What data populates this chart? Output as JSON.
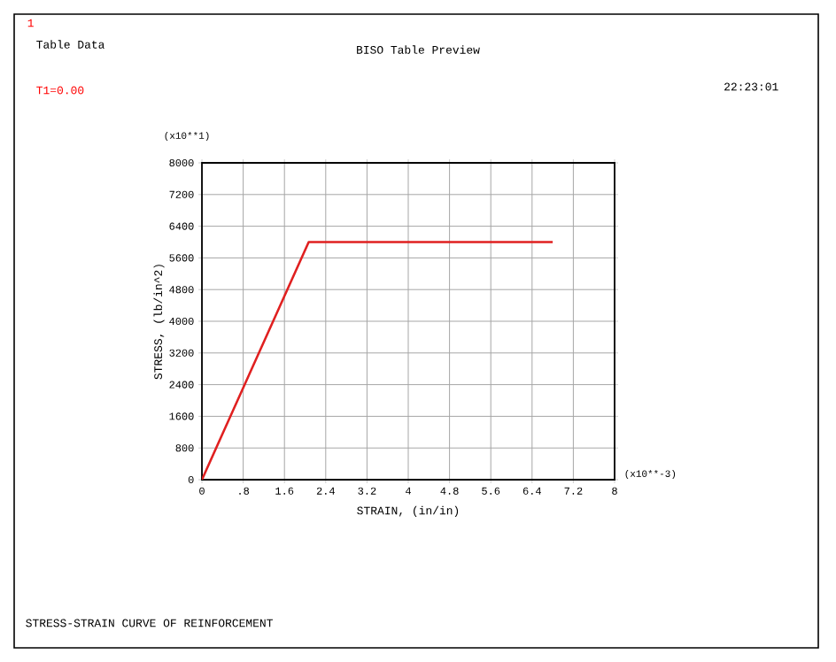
{
  "chart_data": {
    "type": "line",
    "title": "BISO Table Preview",
    "xlabel": "STRAIN, (in/in)",
    "ylabel": "STRESS, (lb/in^2)",
    "x": [
      0,
      2.07,
      6.8
    ],
    "series": [
      {
        "color": "#e02020",
        "values": [
          0,
          6000,
          6000
        ]
      }
    ],
    "xlim": [
      0,
      8
    ],
    "ylim": [
      0,
      8000
    ],
    "xticks": [
      0,
      {
        "value": 0.8,
        "label": ".8"
      },
      1.6,
      2.4,
      3.2,
      4,
      4.8,
      5.6,
      6.4,
      7.2,
      8
    ],
    "yticks": [
      0,
      800,
      1600,
      2400,
      3200,
      4000,
      4800,
      5600,
      6400,
      7200,
      8000
    ],
    "grid": true,
    "marker": "none",
    "line_style": "solid",
    "annotations": [
      "1",
      "Table Data",
      "T1=0.00",
      "22:23:01",
      "(x10**1)",
      "(x10**-3)",
      "STRESS-STRAIN CURVE OF REINFORCEMENT"
    ]
  }
}
